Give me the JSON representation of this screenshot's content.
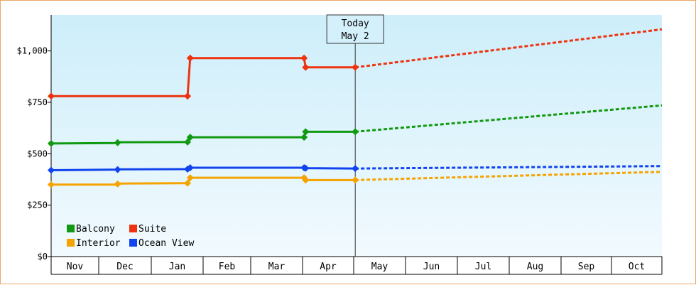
{
  "chart_data": {
    "type": "line",
    "y_ticks": [
      {
        "value": 0,
        "label": "$0"
      },
      {
        "value": 250,
        "label": "$250"
      },
      {
        "value": 500,
        "label": "$500"
      },
      {
        "value": 750,
        "label": "$750"
      },
      {
        "value": 1000,
        "label": "$1,000"
      }
    ],
    "ylim": [
      0,
      1175
    ],
    "months": [
      "Nov",
      "Dec",
      "Jan",
      "Feb",
      "Mar",
      "Apr",
      "May",
      "Jun",
      "Jul",
      "Aug",
      "Sep",
      "Oct"
    ],
    "today": {
      "line1": "Today",
      "line2": "May 2",
      "x": 6.03
    },
    "grid": false,
    "legend_position": "bottom-left",
    "series": [
      {
        "name": "Balcony",
        "color": "#119911",
        "points": [
          [
            0,
            550
          ],
          [
            1.35,
            552
          ],
          [
            1.37,
            556
          ],
          [
            2.7,
            557
          ],
          [
            2.75,
            580
          ],
          [
            5.03,
            580
          ],
          [
            5.06,
            607
          ],
          [
            6.03,
            607
          ]
        ],
        "markers": [
          [
            0,
            550
          ],
          [
            1.36,
            554
          ],
          [
            2.7,
            557
          ],
          [
            2.75,
            580
          ],
          [
            5.03,
            580
          ],
          [
            5.06,
            607
          ],
          [
            6.03,
            607
          ]
        ],
        "forecast": [
          [
            6.03,
            607
          ],
          [
            12,
            735
          ]
        ]
      },
      {
        "name": "Suite",
        "color": "#ee3311",
        "points": [
          [
            0,
            780
          ],
          [
            2.7,
            780
          ],
          [
            2.75,
            965
          ],
          [
            5.03,
            965
          ],
          [
            5.06,
            920
          ],
          [
            6.03,
            920
          ]
        ],
        "markers": [
          [
            0,
            780
          ],
          [
            2.7,
            780
          ],
          [
            2.75,
            965
          ],
          [
            5.03,
            965
          ],
          [
            5.06,
            920
          ],
          [
            6.03,
            920
          ]
        ],
        "forecast": [
          [
            6.03,
            920
          ],
          [
            12,
            1105
          ]
        ]
      },
      {
        "name": "Interior",
        "color": "#f5a300",
        "points": [
          [
            0,
            350
          ],
          [
            1.35,
            350
          ],
          [
            1.37,
            355
          ],
          [
            2.7,
            357
          ],
          [
            2.75,
            383
          ],
          [
            5.03,
            383
          ],
          [
            5.06,
            372
          ],
          [
            6.03,
            372
          ]
        ],
        "markers": [
          [
            0,
            350
          ],
          [
            1.36,
            353
          ],
          [
            2.7,
            357
          ],
          [
            2.75,
            383
          ],
          [
            5.03,
            383
          ],
          [
            5.06,
            372
          ],
          [
            6.03,
            372
          ]
        ],
        "forecast": [
          [
            6.03,
            372
          ],
          [
            12,
            412
          ]
        ]
      },
      {
        "name": "Ocean View",
        "color": "#1144ee",
        "points": [
          [
            0,
            420
          ],
          [
            1.35,
            423
          ],
          [
            1.37,
            424
          ],
          [
            2.7,
            425
          ],
          [
            2.75,
            432
          ],
          [
            5.03,
            432
          ],
          [
            5.06,
            430
          ],
          [
            6.03,
            428
          ]
        ],
        "markers": [
          [
            0,
            420
          ],
          [
            1.36,
            423
          ],
          [
            2.7,
            425
          ],
          [
            2.75,
            432
          ],
          [
            5.03,
            432
          ],
          [
            5.06,
            430
          ],
          [
            6.03,
            428
          ]
        ],
        "forecast": [
          [
            6.03,
            428
          ],
          [
            12,
            440
          ]
        ]
      }
    ],
    "legend_order": [
      "Balcony",
      "Suite",
      "Interior",
      "Ocean View"
    ]
  }
}
